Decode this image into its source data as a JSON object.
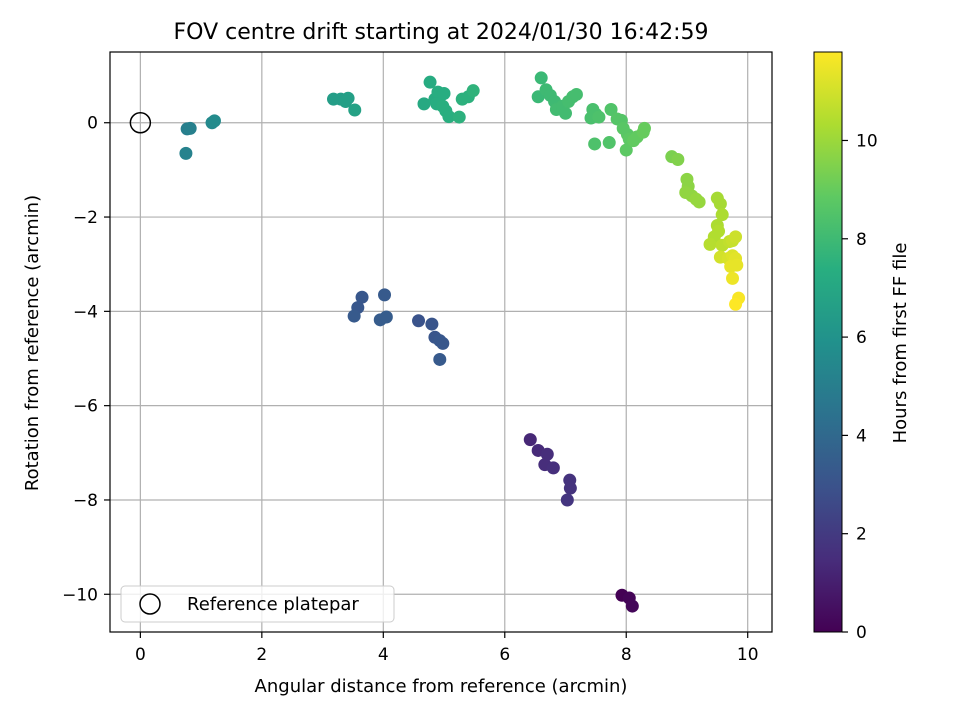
{
  "chart_data": {
    "type": "scatter",
    "title": "FOV centre drift starting at 2024/01/30 16:42:59",
    "xlabel": "Angular distance from reference (arcmin)",
    "ylabel": "Rotation from reference (arcmin)",
    "xlim": [
      -0.5,
      10.4
    ],
    "ylim": [
      -10.8,
      1.5
    ],
    "xticks": [
      0,
      2,
      4,
      6,
      8,
      10
    ],
    "yticks": [
      -10,
      -8,
      -6,
      -4,
      -2,
      0
    ],
    "grid": true,
    "colormap": "viridis",
    "colorbar": {
      "label": "Hours from first FF file",
      "range": [
        0,
        11.8
      ],
      "ticks": [
        0,
        2,
        4,
        6,
        8,
        10
      ]
    },
    "legend": {
      "position": "lower-left",
      "entries": [
        {
          "label": "Reference platepar",
          "marker": "open-circle"
        }
      ]
    },
    "reference_point": {
      "x": 0,
      "y": 0
    },
    "points": [
      {
        "x": 7.93,
        "y": -10.02,
        "h": 0.0
      },
      {
        "x": 8.05,
        "y": -10.08,
        "h": 0.1
      },
      {
        "x": 8.1,
        "y": -10.25,
        "h": 0.2
      },
      {
        "x": 6.42,
        "y": -6.72,
        "h": 1.3
      },
      {
        "x": 6.55,
        "y": -6.95,
        "h": 1.4
      },
      {
        "x": 6.7,
        "y": -7.03,
        "h": 1.5
      },
      {
        "x": 6.66,
        "y": -7.25,
        "h": 1.5
      },
      {
        "x": 6.8,
        "y": -7.32,
        "h": 1.6
      },
      {
        "x": 7.07,
        "y": -7.58,
        "h": 1.7
      },
      {
        "x": 7.08,
        "y": -7.75,
        "h": 1.7
      },
      {
        "x": 7.03,
        "y": -8.0,
        "h": 1.8
      },
      {
        "x": 3.65,
        "y": -3.7,
        "h": 3.2
      },
      {
        "x": 3.58,
        "y": -3.92,
        "h": 3.2
      },
      {
        "x": 3.52,
        "y": -4.1,
        "h": 3.3
      },
      {
        "x": 4.02,
        "y": -3.65,
        "h": 3.3
      },
      {
        "x": 3.95,
        "y": -4.18,
        "h": 3.4
      },
      {
        "x": 4.05,
        "y": -4.12,
        "h": 3.4
      },
      {
        "x": 4.58,
        "y": -4.2,
        "h": 3.0
      },
      {
        "x": 4.8,
        "y": -4.27,
        "h": 3.1
      },
      {
        "x": 4.85,
        "y": -4.55,
        "h": 3.1
      },
      {
        "x": 4.93,
        "y": -4.62,
        "h": 3.2
      },
      {
        "x": 4.98,
        "y": -4.68,
        "h": 3.2
      },
      {
        "x": 4.93,
        "y": -5.02,
        "h": 3.3
      },
      {
        "x": 0.77,
        "y": -0.13,
        "h": 5.0
      },
      {
        "x": 0.82,
        "y": -0.12,
        "h": 5.1
      },
      {
        "x": 0.75,
        "y": -0.65,
        "h": 5.2
      },
      {
        "x": 1.18,
        "y": 0.0,
        "h": 5.5
      },
      {
        "x": 1.22,
        "y": 0.04,
        "h": 5.6
      },
      {
        "x": 3.18,
        "y": 0.5,
        "h": 6.5
      },
      {
        "x": 3.3,
        "y": 0.5,
        "h": 6.5
      },
      {
        "x": 3.42,
        "y": 0.52,
        "h": 6.6
      },
      {
        "x": 3.38,
        "y": 0.45,
        "h": 6.6
      },
      {
        "x": 3.53,
        "y": 0.27,
        "h": 6.7
      },
      {
        "x": 4.67,
        "y": 0.4,
        "h": 7.1
      },
      {
        "x": 4.77,
        "y": 0.86,
        "h": 7.2
      },
      {
        "x": 4.85,
        "y": 0.5,
        "h": 7.2
      },
      {
        "x": 4.9,
        "y": 0.65,
        "h": 7.3
      },
      {
        "x": 4.95,
        "y": 0.58,
        "h": 7.3
      },
      {
        "x": 5.0,
        "y": 0.62,
        "h": 7.3
      },
      {
        "x": 4.88,
        "y": 0.4,
        "h": 7.3
      },
      {
        "x": 4.98,
        "y": 0.35,
        "h": 7.4
      },
      {
        "x": 5.03,
        "y": 0.25,
        "h": 7.4
      },
      {
        "x": 5.08,
        "y": 0.13,
        "h": 7.4
      },
      {
        "x": 5.25,
        "y": 0.12,
        "h": 7.5
      },
      {
        "x": 5.3,
        "y": 0.5,
        "h": 7.5
      },
      {
        "x": 5.4,
        "y": 0.55,
        "h": 7.5
      },
      {
        "x": 5.48,
        "y": 0.68,
        "h": 7.6
      },
      {
        "x": 6.6,
        "y": 0.95,
        "h": 7.9
      },
      {
        "x": 6.55,
        "y": 0.55,
        "h": 7.9
      },
      {
        "x": 6.68,
        "y": 0.7,
        "h": 8.0
      },
      {
        "x": 6.75,
        "y": 0.58,
        "h": 8.0
      },
      {
        "x": 6.82,
        "y": 0.45,
        "h": 8.0
      },
      {
        "x": 6.85,
        "y": 0.28,
        "h": 8.1
      },
      {
        "x": 6.95,
        "y": 0.35,
        "h": 8.1
      },
      {
        "x": 7.0,
        "y": 0.2,
        "h": 8.1
      },
      {
        "x": 7.05,
        "y": 0.45,
        "h": 8.2
      },
      {
        "x": 7.12,
        "y": 0.55,
        "h": 8.2
      },
      {
        "x": 7.18,
        "y": 0.6,
        "h": 8.2
      },
      {
        "x": 7.42,
        "y": 0.1,
        "h": 8.3
      },
      {
        "x": 7.45,
        "y": 0.28,
        "h": 8.3
      },
      {
        "x": 7.5,
        "y": 0.18,
        "h": 8.3
      },
      {
        "x": 7.55,
        "y": 0.12,
        "h": 8.4
      },
      {
        "x": 7.48,
        "y": -0.45,
        "h": 8.4
      },
      {
        "x": 7.72,
        "y": -0.42,
        "h": 8.5
      },
      {
        "x": 7.75,
        "y": 0.28,
        "h": 8.5
      },
      {
        "x": 7.85,
        "y": 0.08,
        "h": 8.6
      },
      {
        "x": 7.92,
        "y": 0.05,
        "h": 8.6
      },
      {
        "x": 7.95,
        "y": -0.12,
        "h": 8.7
      },
      {
        "x": 8.02,
        "y": -0.25,
        "h": 8.7
      },
      {
        "x": 8.0,
        "y": -0.58,
        "h": 8.8
      },
      {
        "x": 8.05,
        "y": -0.35,
        "h": 8.8
      },
      {
        "x": 8.12,
        "y": -0.38,
        "h": 8.9
      },
      {
        "x": 8.18,
        "y": -0.3,
        "h": 8.9
      },
      {
        "x": 8.28,
        "y": -0.2,
        "h": 9.0
      },
      {
        "x": 8.3,
        "y": -0.12,
        "h": 9.0
      },
      {
        "x": 8.75,
        "y": -0.72,
        "h": 9.4
      },
      {
        "x": 8.85,
        "y": -0.78,
        "h": 9.5
      },
      {
        "x": 9.0,
        "y": -1.2,
        "h": 9.7
      },
      {
        "x": 9.02,
        "y": -1.35,
        "h": 9.7
      },
      {
        "x": 8.98,
        "y": -1.48,
        "h": 9.8
      },
      {
        "x": 9.08,
        "y": -1.55,
        "h": 9.8
      },
      {
        "x": 9.15,
        "y": -1.62,
        "h": 9.9
      },
      {
        "x": 9.2,
        "y": -1.68,
        "h": 9.9
      },
      {
        "x": 9.5,
        "y": -1.6,
        "h": 10.2
      },
      {
        "x": 9.55,
        "y": -1.72,
        "h": 10.2
      },
      {
        "x": 9.58,
        "y": -1.95,
        "h": 10.3
      },
      {
        "x": 9.5,
        "y": -2.18,
        "h": 10.3
      },
      {
        "x": 9.52,
        "y": -2.3,
        "h": 10.4
      },
      {
        "x": 9.45,
        "y": -2.42,
        "h": 10.4
      },
      {
        "x": 9.38,
        "y": -2.58,
        "h": 10.5
      },
      {
        "x": 9.58,
        "y": -2.6,
        "h": 10.6
      },
      {
        "x": 9.7,
        "y": -2.52,
        "h": 10.7
      },
      {
        "x": 9.75,
        "y": -2.5,
        "h": 10.8
      },
      {
        "x": 9.8,
        "y": -2.42,
        "h": 10.9
      },
      {
        "x": 9.55,
        "y": -2.85,
        "h": 11.0
      },
      {
        "x": 9.68,
        "y": -2.88,
        "h": 11.1
      },
      {
        "x": 9.75,
        "y": -2.82,
        "h": 11.2
      },
      {
        "x": 9.8,
        "y": -2.88,
        "h": 11.3
      },
      {
        "x": 9.72,
        "y": -3.05,
        "h": 11.4
      },
      {
        "x": 9.82,
        "y": -3.02,
        "h": 11.4
      },
      {
        "x": 9.75,
        "y": -3.3,
        "h": 11.5
      },
      {
        "x": 9.85,
        "y": -3.72,
        "h": 11.7
      },
      {
        "x": 9.8,
        "y": -3.85,
        "h": 11.8
      }
    ]
  }
}
